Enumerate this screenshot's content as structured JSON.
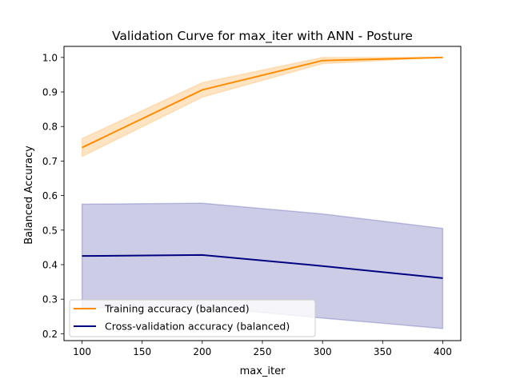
{
  "chart_data": {
    "type": "line",
    "title": "Validation Curve for max_iter with ANN - Posture",
    "xlabel": "max_iter",
    "ylabel": "Balanced Accuracy",
    "x": [
      100,
      200,
      300,
      400
    ],
    "xlim": [
      85,
      415
    ],
    "ylim": [
      0.18,
      1.032
    ],
    "xticks": [
      100,
      150,
      200,
      250,
      300,
      350,
      400
    ],
    "xtick_labels": [
      "100",
      "150",
      "200",
      "250",
      "300",
      "350",
      "400"
    ],
    "yticks": [
      0.2,
      0.3,
      0.4,
      0.5,
      0.6,
      0.7,
      0.8,
      0.9,
      1.0
    ],
    "ytick_labels": [
      "0.2",
      "0.3",
      "0.4",
      "0.5",
      "0.6",
      "0.7",
      "0.8",
      "0.9",
      "1.0"
    ],
    "grid": false,
    "legend_position": "lower-left",
    "series": [
      {
        "name": "Training accuracy (balanced)",
        "color": "#ff8c00",
        "values": [
          0.739,
          0.906,
          0.991,
          1.0
        ],
        "band_upper": [
          0.765,
          0.927,
          1.0,
          1.0
        ],
        "band_lower": [
          0.713,
          0.885,
          0.982,
          1.0
        ],
        "band_color": "#ffe4c4"
      },
      {
        "name": "Cross-validation accuracy (balanced)",
        "color": "#000080",
        "values": [
          0.425,
          0.428,
          0.396,
          0.361
        ],
        "band_upper": [
          0.575,
          0.578,
          0.547,
          0.505
        ],
        "band_lower": [
          0.275,
          0.278,
          0.245,
          0.215
        ],
        "band_color": "#cccce6"
      }
    ]
  }
}
